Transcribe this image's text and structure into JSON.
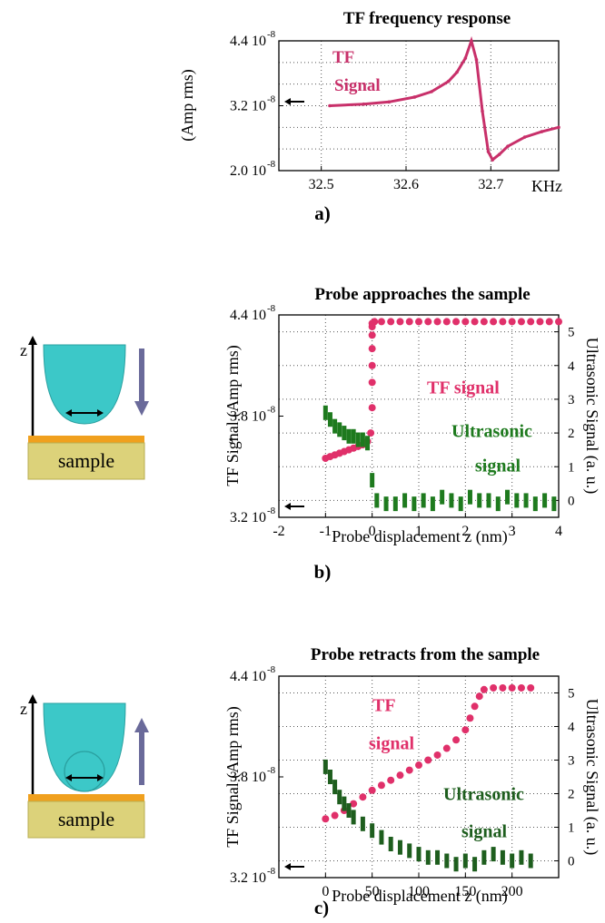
{
  "charts": [
    {
      "type": "line",
      "title": "TF frequency response",
      "panel_label": "a)",
      "xlabel": "KHz",
      "ylabel": "(Amp rms)",
      "xlim": [
        32.45,
        32.78
      ],
      "ylim": [
        2.0,
        4.4
      ],
      "x_ticks": [
        {
          "v": 32.5,
          "label": "32.5"
        },
        {
          "v": 32.6,
          "label": "32.6"
        },
        {
          "v": 32.7,
          "label": "32.7"
        }
      ],
      "y_ticks": [
        {
          "v": 4.4,
          "label": "4.4 10"
        },
        {
          "v": 3.2,
          "label": "3.2 10"
        },
        {
          "v": 2.0,
          "label": "2.0 10"
        }
      ],
      "y_tick_exponent": "-8",
      "series": [
        {
          "name": "TF Signal",
          "label_lines": [
            "TF",
            "Signal"
          ],
          "color": "#c8306a",
          "x": [
            32.51,
            32.55,
            32.58,
            32.61,
            32.63,
            32.65,
            32.66,
            32.67,
            32.677,
            32.683,
            32.69,
            32.697,
            32.702,
            32.71,
            32.72,
            32.74,
            32.76,
            32.78
          ],
          "y": [
            3.2,
            3.23,
            3.27,
            3.36,
            3.46,
            3.65,
            3.82,
            4.08,
            4.4,
            4.05,
            3.1,
            2.35,
            2.2,
            2.3,
            2.45,
            2.62,
            2.72,
            2.8
          ]
        }
      ]
    },
    {
      "type": "scatter",
      "title": "Probe approaches the sample",
      "panel_label": "b)",
      "xlabel": "Probe displacement  z (nm)",
      "ylabel": "TF Signal  (Amp rms)",
      "ylabel_prefix": "s",
      "y2label": "Ultrasonic Signal (a. u.)",
      "xlim": [
        -2,
        4
      ],
      "ylim": [
        3.2,
        4.4
      ],
      "y2lim": [
        -0.5,
        5.5
      ],
      "x_ticks": [
        {
          "v": -2,
          "label": "-2"
        },
        {
          "v": -1,
          "label": "-1"
        },
        {
          "v": 0,
          "label": "0"
        },
        {
          "v": 1,
          "label": "1"
        },
        {
          "v": 2,
          "label": "2"
        },
        {
          "v": 3,
          "label": "3"
        },
        {
          "v": 4,
          "label": "4"
        }
      ],
      "y_ticks": [
        {
          "v": 4.4,
          "label": "4.4 10"
        },
        {
          "v": 3.8,
          "label": "3.8 10"
        },
        {
          "v": 3.2,
          "label": "3.2 10"
        }
      ],
      "y_tick_exponent": "-8",
      "y2_ticks": [
        "0",
        "1",
        "2",
        "3",
        "4",
        "5"
      ],
      "series": [
        {
          "name": "TF signal",
          "label_lines": [
            "TF signal"
          ],
          "color": "#e0306a",
          "x": [
            -1.0,
            -0.9,
            -0.8,
            -0.7,
            -0.6,
            -0.5,
            -0.4,
            -0.3,
            -0.2,
            -0.1,
            -0.03,
            0.0,
            0.0,
            0.0,
            0.0,
            0.0,
            0.0,
            0.0,
            0.05,
            0.2,
            0.4,
            0.6,
            0.8,
            1.0,
            1.2,
            1.4,
            1.6,
            1.8,
            2.0,
            2.2,
            2.4,
            2.6,
            2.8,
            3.0,
            3.2,
            3.4,
            3.6,
            3.8,
            4.0
          ],
          "y": [
            3.55,
            3.56,
            3.57,
            3.58,
            3.59,
            3.6,
            3.61,
            3.62,
            3.63,
            3.65,
            3.7,
            3.85,
            4.0,
            4.1,
            4.2,
            4.28,
            4.33,
            4.35,
            4.36,
            4.36,
            4.36,
            4.36,
            4.36,
            4.36,
            4.36,
            4.36,
            4.36,
            4.36,
            4.36,
            4.36,
            4.36,
            4.36,
            4.36,
            4.36,
            4.36,
            4.36,
            4.36,
            4.36,
            4.36
          ]
        },
        {
          "name": "Ultrasonic signal",
          "label_lines": [
            "Ultrasonic",
            "signal"
          ],
          "color": "#1e7a1e",
          "x": [
            -1.0,
            -0.9,
            -0.8,
            -0.7,
            -0.6,
            -0.5,
            -0.4,
            -0.3,
            -0.2,
            -0.1,
            0.0,
            0.1,
            0.3,
            0.5,
            0.7,
            0.9,
            1.1,
            1.3,
            1.5,
            1.7,
            1.9,
            2.1,
            2.3,
            2.5,
            2.7,
            2.9,
            3.1,
            3.3,
            3.5,
            3.7,
            3.9
          ],
          "y": [
            2.6,
            2.4,
            2.2,
            2.1,
            2.0,
            1.9,
            1.9,
            1.8,
            1.8,
            1.7,
            0.6,
            0.0,
            -0.1,
            -0.1,
            0.0,
            -0.1,
            0.0,
            -0.1,
            0.1,
            0.0,
            -0.1,
            0.1,
            0.0,
            0.0,
            -0.1,
            0.1,
            0.0,
            0.0,
            -0.1,
            0.0,
            -0.1
          ]
        }
      ]
    },
    {
      "type": "scatter",
      "title": "Probe retracts from the sample",
      "panel_label": "c)",
      "xlabel": "Probe displacement  z (nm)",
      "ylabel": "TF Signal (Amp rms)",
      "y2label": "Ultrasonic Signal (a. u.)",
      "xlim": [
        -50,
        250
      ],
      "ylim": [
        3.2,
        4.4
      ],
      "y2lim": [
        -0.5,
        5.5
      ],
      "x_ticks": [
        {
          "v": 0,
          "label": "0"
        },
        {
          "v": 50,
          "label": "50"
        },
        {
          "v": 100,
          "label": "100"
        },
        {
          "v": 150,
          "label": "150"
        },
        {
          "v": 200,
          "label": "200"
        }
      ],
      "y_ticks": [
        {
          "v": 4.4,
          "label": "4.4 10"
        },
        {
          "v": 3.8,
          "label": "3.8 10"
        },
        {
          "v": 3.2,
          "label": "3.2 10"
        }
      ],
      "y_tick_exponent": "-8",
      "y2_ticks": [
        "0",
        "1",
        "2",
        "3",
        "4",
        "5"
      ],
      "series": [
        {
          "name": "TF signal",
          "label_lines": [
            "TF",
            "signal"
          ],
          "color": "#e0306a",
          "x": [
            0,
            10,
            20,
            30,
            40,
            50,
            60,
            70,
            80,
            90,
            100,
            110,
            120,
            130,
            140,
            150,
            155,
            160,
            165,
            170,
            180,
            190,
            200,
            210,
            220
          ],
          "y": [
            3.55,
            3.57,
            3.6,
            3.64,
            3.68,
            3.72,
            3.75,
            3.78,
            3.81,
            3.84,
            3.87,
            3.9,
            3.93,
            3.97,
            4.02,
            4.08,
            4.15,
            4.22,
            4.28,
            4.32,
            4.33,
            4.33,
            4.33,
            4.33,
            4.33
          ]
        },
        {
          "name": "Ultrasonic signal",
          "label_lines": [
            "Ultrasonic",
            "signal"
          ],
          "color": "#1e5e1e",
          "x": [
            0,
            5,
            10,
            15,
            20,
            25,
            30,
            40,
            50,
            60,
            70,
            80,
            90,
            100,
            110,
            120,
            130,
            140,
            150,
            160,
            170,
            180,
            190,
            200,
            210,
            220
          ],
          "y": [
            2.8,
            2.5,
            2.2,
            1.9,
            1.7,
            1.5,
            1.3,
            1.1,
            0.9,
            0.7,
            0.5,
            0.4,
            0.3,
            0.2,
            0.1,
            0.1,
            0.0,
            -0.1,
            0.0,
            -0.1,
            0.1,
            0.2,
            0.1,
            0.0,
            0.1,
            0.0
          ]
        }
      ]
    }
  ],
  "diagrams": [
    {
      "axis_label": "z",
      "sample_label": "sample",
      "arrow_direction": "down",
      "contact": false
    },
    {
      "axis_label": "z",
      "sample_label": "sample",
      "arrow_direction": "up",
      "contact": true
    }
  ],
  "colors": {
    "tip": "#3cc8c8",
    "sample_block": "#dcd27a",
    "sample_layer": "#f0a01e",
    "arrow": "#6a6a9a",
    "grid": "#555555"
  }
}
